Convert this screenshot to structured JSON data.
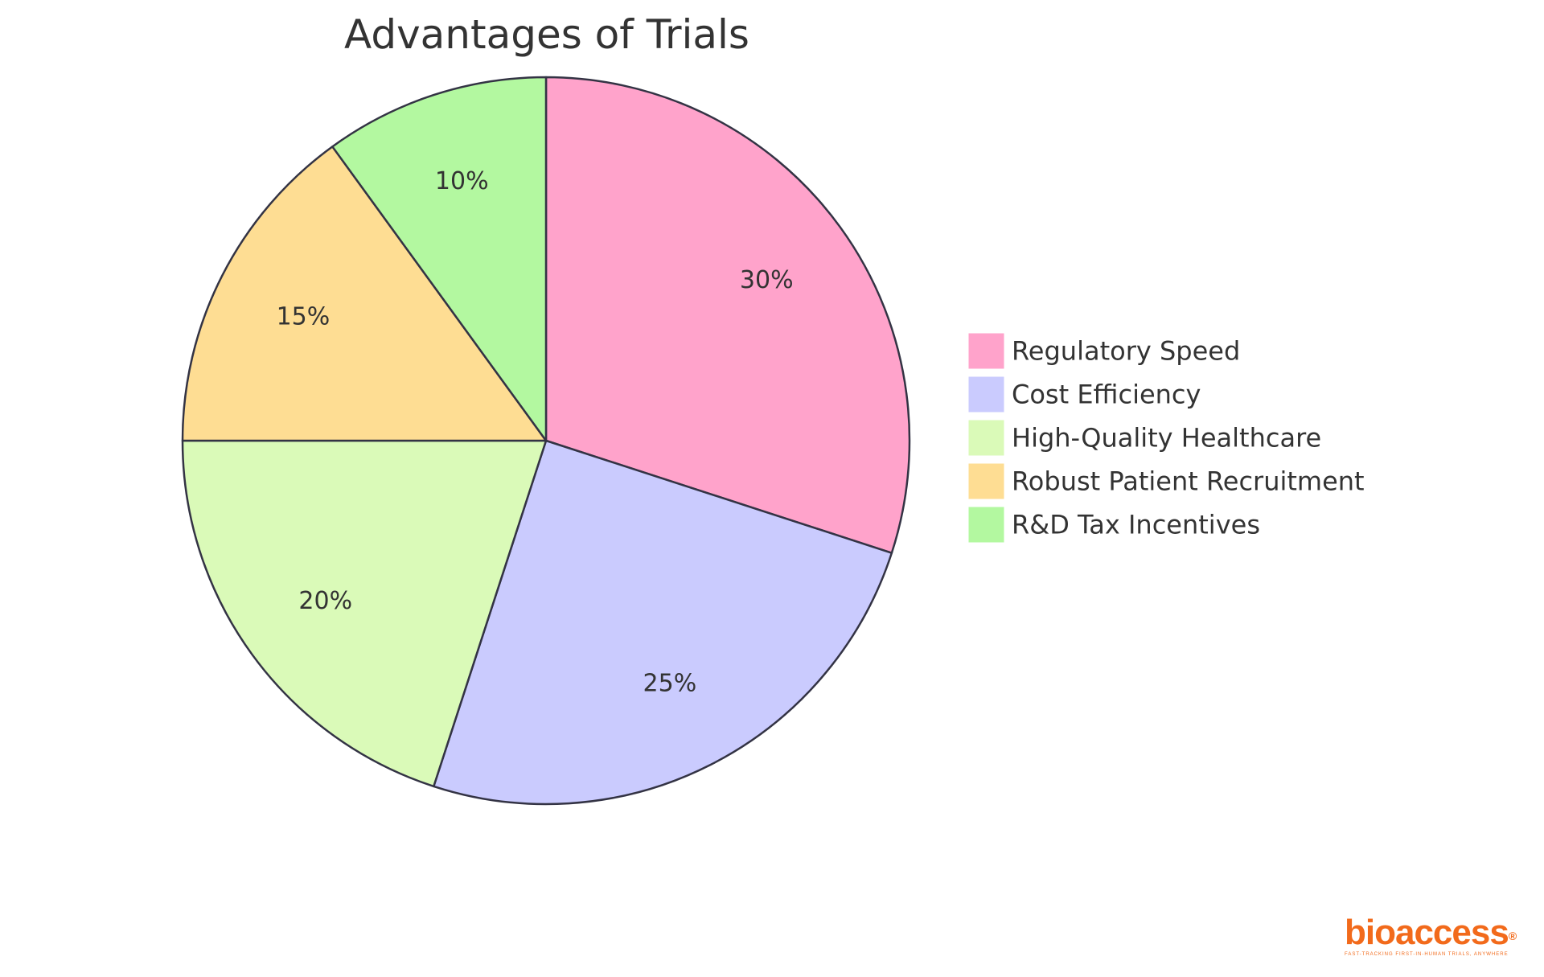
{
  "chart_data": {
    "type": "pie",
    "title": "Advantages of Trials",
    "categories": [
      "Regulatory Speed",
      "Cost Efficiency",
      "High-Quality Healthcare",
      "Robust Patient Recruitment",
      "R&D Tax Incentives"
    ],
    "values": [
      30,
      25,
      20,
      15,
      10
    ],
    "labels": [
      "30%",
      "25%",
      "20%",
      "15%",
      "10%"
    ],
    "colors": [
      "#ffa3cb",
      "#cacbfe",
      "#dafab8",
      "#fedd93",
      "#b3f8a0"
    ],
    "stroke_color": "#333344",
    "start_angle": "12 o'clock",
    "direction": "clockwise",
    "legend": "right"
  },
  "logo": {
    "text": "bioaccess",
    "mark": "®",
    "tagline": "FAST-TRACKING FIRST-IN-HUMAN TRIALS, ANYWHERE",
    "color": "#f26a1b"
  }
}
